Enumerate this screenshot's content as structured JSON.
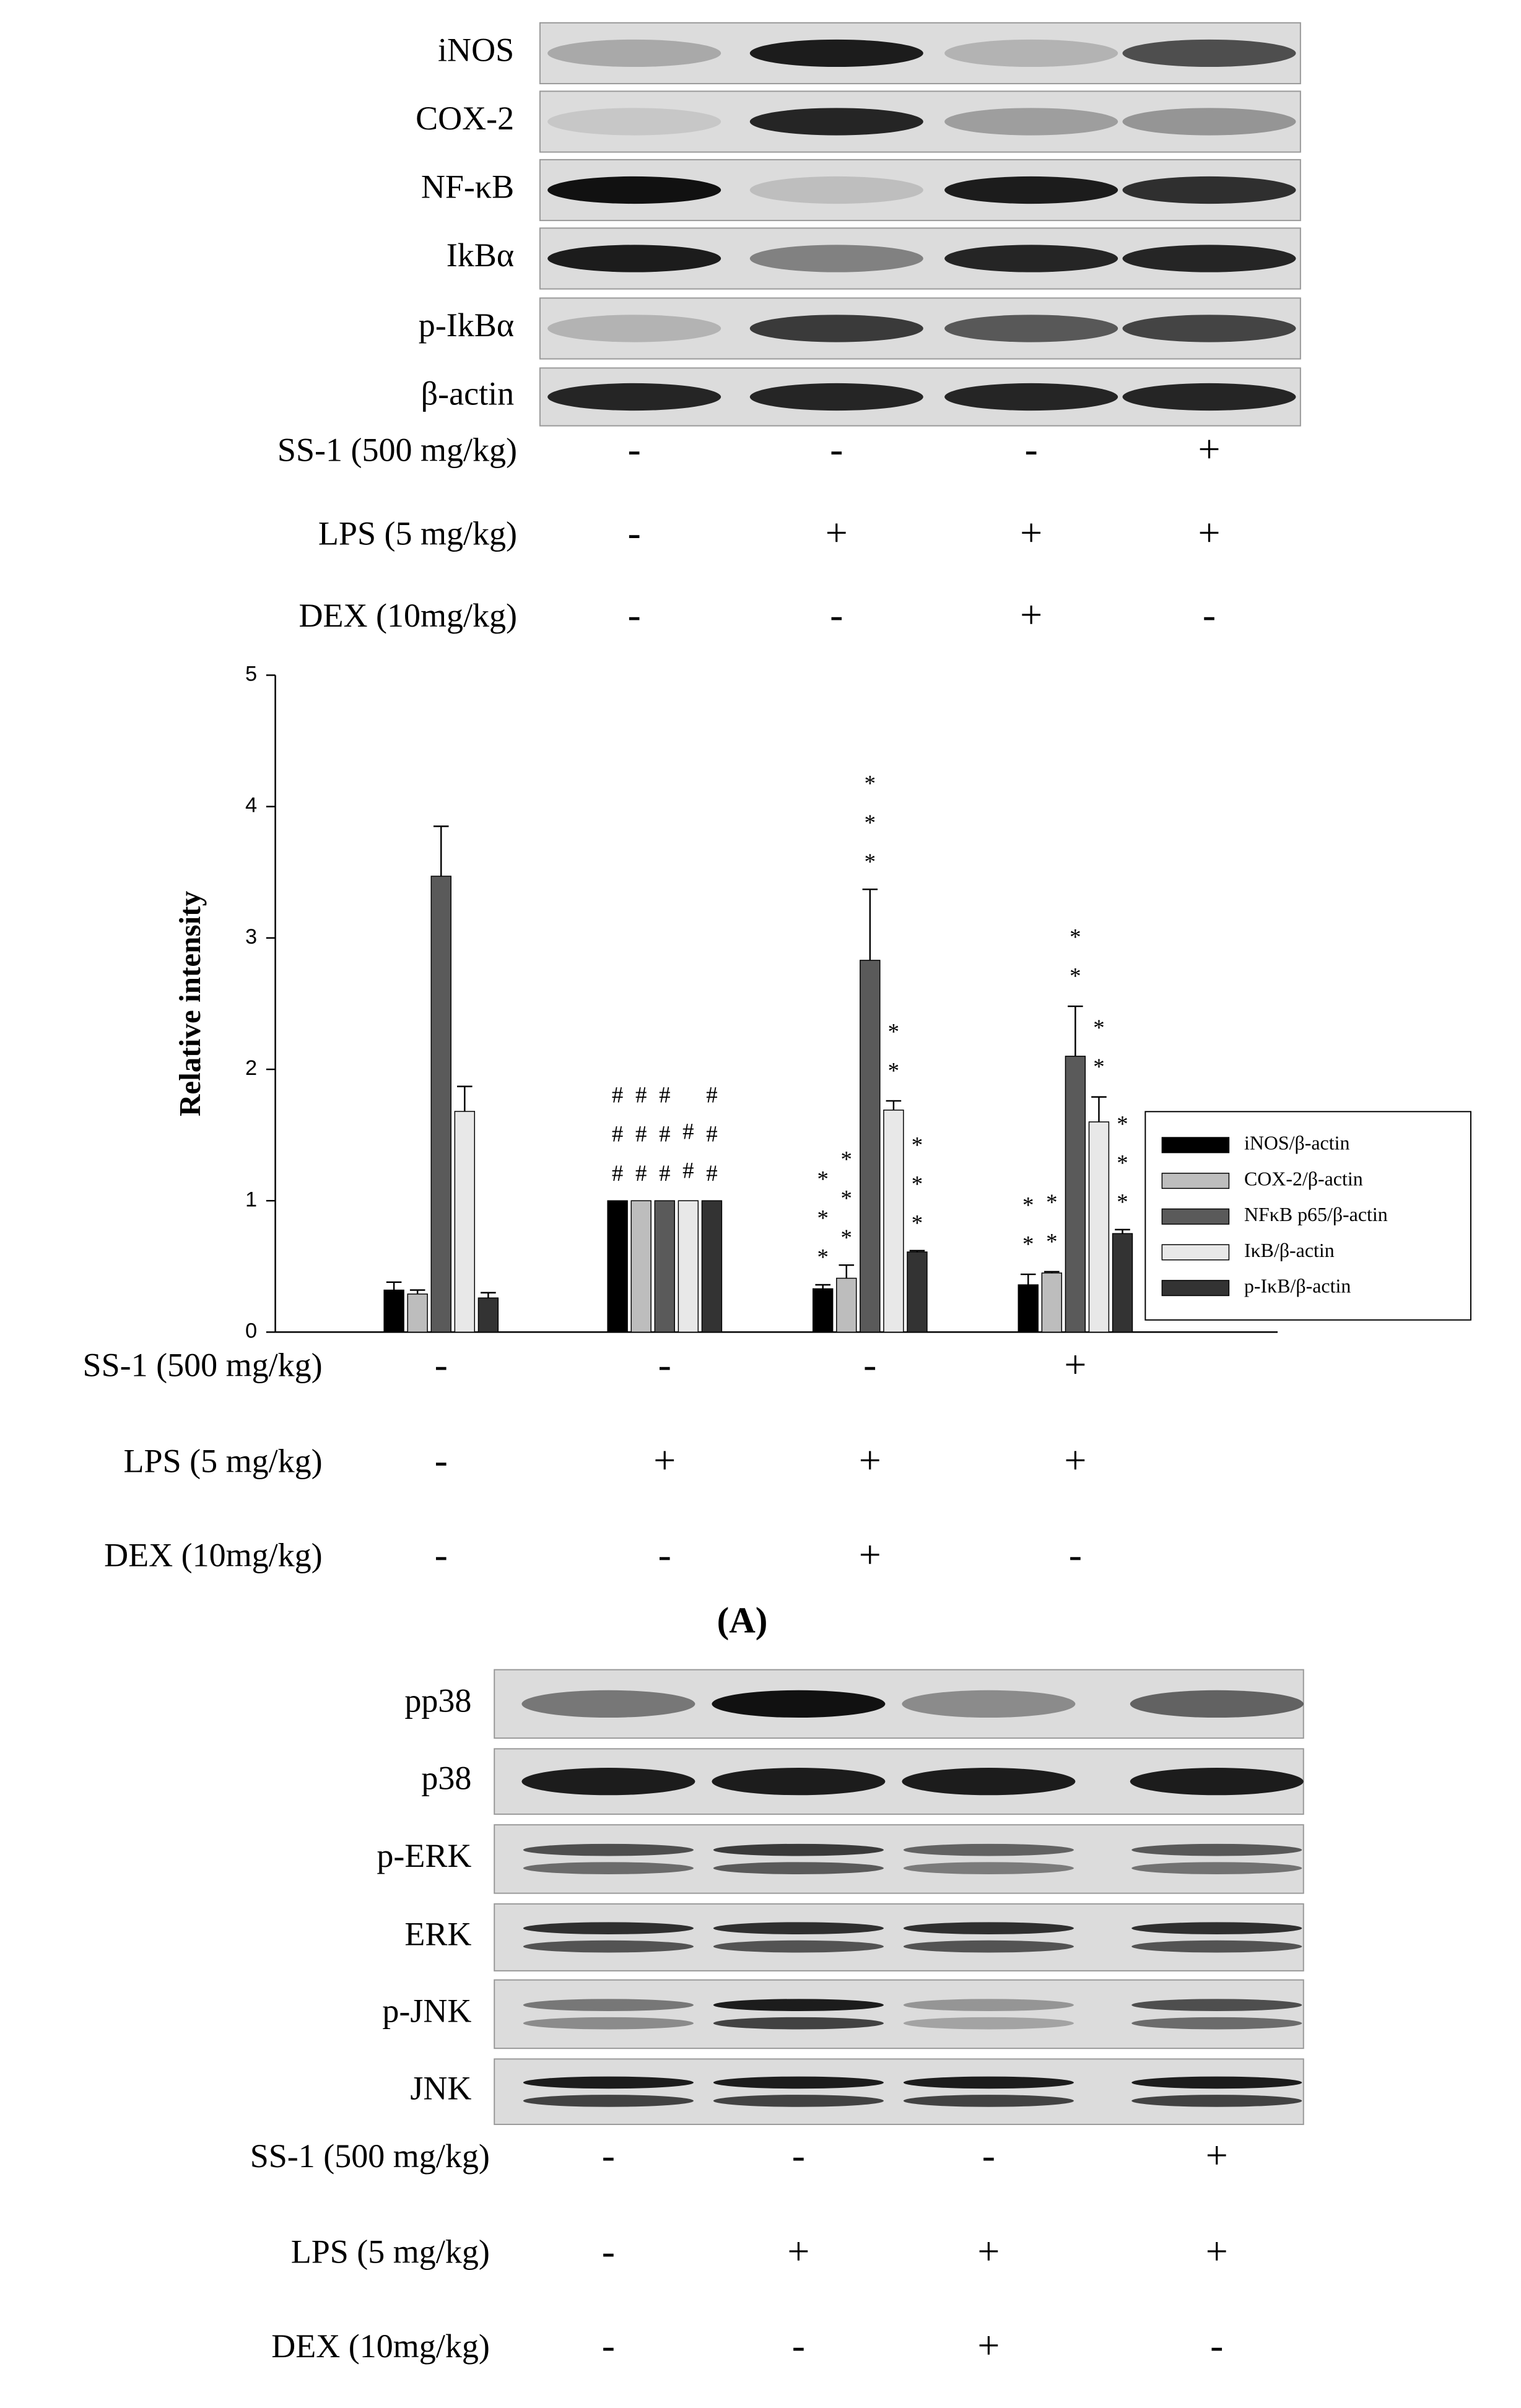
{
  "blot_a": {
    "bands": [
      "iNOS",
      "COX-2",
      "NF-κB",
      "IkBα",
      "p-IkBα",
      "β-actin"
    ],
    "conditions": [
      {
        "label": "SS-1 (500 mg/kg)",
        "signs": [
          "-",
          "-",
          "-",
          "+"
        ]
      },
      {
        "label": "LPS (5 mg/kg)",
        "signs": [
          "-",
          "+",
          "+",
          "+"
        ]
      },
      {
        "label": "DEX (10mg/kg)",
        "signs": [
          "-",
          "-",
          "+",
          "-"
        ]
      }
    ]
  },
  "chart_data": {
    "type": "bar",
    "ylabel": "Relative intensity",
    "categories": [
      null,
      null,
      null,
      null
    ],
    "ylim": [
      0,
      5
    ],
    "yticks": [
      0,
      1,
      2,
      3,
      4,
      5
    ],
    "legend": "right",
    "series": [
      {
        "name": "iNOS/β-actin",
        "color": "#000000",
        "values": [
          0.32,
          1.0,
          0.33,
          0.36
        ],
        "errors": [
          0.06,
          0,
          0.03,
          0.08
        ],
        "marks": [
          null,
          "###",
          "***",
          "**"
        ]
      },
      {
        "name": "COX-2/β-actin",
        "color": "#bdbdbd",
        "values": [
          0.29,
          1.0,
          0.41,
          0.45
        ],
        "errors": [
          0.03,
          0,
          0.1,
          0.01
        ],
        "marks": [
          null,
          "###",
          "***",
          "**"
        ]
      },
      {
        "name": "NFκB p65/β-actin",
        "color": "#5a5a5a",
        "values": [
          3.47,
          1.0,
          2.83,
          2.1
        ],
        "errors": [
          0.38,
          0,
          0.54,
          0.38
        ],
        "marks": [
          null,
          "###",
          "***",
          "**"
        ]
      },
      {
        "name": "IκB/β-actin",
        "color": "#e8e8e8",
        "values": [
          1.68,
          1.0,
          1.69,
          1.6
        ],
        "errors": [
          0.19,
          0,
          0.07,
          0.19
        ],
        "marks": [
          null,
          "##",
          "**",
          "**"
        ]
      },
      {
        "name": "p-IκB/β-actin",
        "color": "#333333",
        "values": [
          0.26,
          1.0,
          0.61,
          0.75
        ],
        "errors": [
          0.04,
          0,
          0.01,
          0.03
        ],
        "marks": [
          null,
          "###",
          "***",
          "***"
        ]
      }
    ],
    "conditions": [
      {
        "label": "SS-1 (500 mg/kg)",
        "signs": [
          "-",
          "-",
          "-",
          "+"
        ]
      },
      {
        "label": "LPS (5 mg/kg)",
        "signs": [
          "-",
          "+",
          "+",
          "+"
        ]
      },
      {
        "label": "DEX (10mg/kg)",
        "signs": [
          "-",
          "-",
          "+",
          "-"
        ]
      }
    ]
  },
  "panel_label": "(A)",
  "blot_b": {
    "bands": [
      "pp38",
      "p38",
      "p-ERK",
      "ERK",
      "p-JNK",
      "JNK"
    ],
    "conditions": [
      {
        "label": "SS-1 (500 mg/kg)",
        "signs": [
          "-",
          "-",
          "-",
          "+"
        ]
      },
      {
        "label": "LPS (5 mg/kg)",
        "signs": [
          "-",
          "+",
          "+",
          "+"
        ]
      },
      {
        "label": "DEX (10mg/kg)",
        "signs": [
          "-",
          "-",
          "+",
          "-"
        ]
      }
    ]
  }
}
